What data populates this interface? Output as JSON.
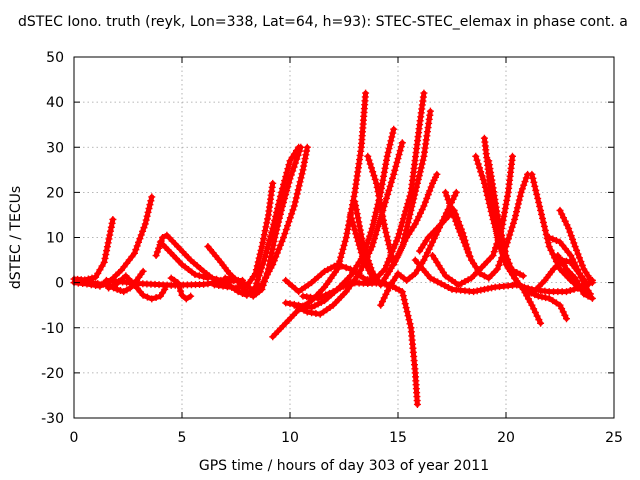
{
  "chart_data": {
    "type": "line",
    "title": "dSTEC Iono. truth (reyk, Lon=338, Lat=64, h=93): STEC-STEC_elemax in phase cont. a",
    "xlabel": "GPS time / hours of day 303 of year 2011",
    "ylabel": "dSTEC  / TECUs",
    "xlim": [
      0,
      25
    ],
    "ylim": [
      -30,
      50
    ],
    "xticks": [
      0,
      5,
      10,
      15,
      20,
      25
    ],
    "yticks": [
      -30,
      -20,
      -10,
      0,
      10,
      20,
      30,
      40,
      50
    ],
    "grid": true,
    "color": "#ff0000",
    "marker": "plus",
    "series": [
      {
        "points": [
          [
            0.0,
            0.8
          ],
          [
            0.5,
            0.6
          ],
          [
            1.0,
            1.2
          ],
          [
            1.4,
            4.5
          ],
          [
            1.8,
            14.0
          ]
        ]
      },
      {
        "points": [
          [
            0.0,
            0.0
          ],
          [
            0.6,
            -0.3
          ],
          [
            1.2,
            -0.8
          ],
          [
            1.7,
            0.5
          ],
          [
            2.2,
            2.8
          ],
          [
            2.8,
            6.5
          ],
          [
            3.3,
            13.0
          ],
          [
            3.6,
            19.0
          ]
        ]
      },
      {
        "points": [
          [
            0.5,
            0.2
          ],
          [
            1.5,
            -0.5
          ],
          [
            2.0,
            -1.5
          ],
          [
            2.3,
            -2.0
          ],
          [
            2.6,
            -1.2
          ],
          [
            2.9,
            0.5
          ],
          [
            3.2,
            2.5
          ]
        ]
      },
      {
        "points": [
          [
            1.6,
            -1.2
          ],
          [
            2.0,
            -0.2
          ],
          [
            2.4,
            1.5
          ],
          [
            2.8,
            -0.5
          ],
          [
            3.2,
            -2.8
          ],
          [
            3.6,
            -3.6
          ],
          [
            4.0,
            -3.0
          ],
          [
            4.2,
            -1.5
          ]
        ]
      },
      {
        "points": [
          [
            3.8,
            6.0
          ],
          [
            4.1,
            10.0
          ],
          [
            4.3,
            10.5
          ],
          [
            4.8,
            8.0
          ],
          [
            5.4,
            5.0
          ],
          [
            6.0,
            2.5
          ],
          [
            6.4,
            1.0
          ],
          [
            6.8,
            0.5
          ]
        ]
      },
      {
        "points": [
          [
            4.0,
            9.0
          ],
          [
            4.6,
            6.0
          ],
          [
            5.0,
            4.0
          ],
          [
            5.6,
            1.8
          ],
          [
            6.2,
            1.0
          ]
        ]
      },
      {
        "points": [
          [
            4.5,
            1.0
          ],
          [
            4.8,
            0.0
          ],
          [
            5.0,
            -2.8
          ],
          [
            5.2,
            -3.6
          ],
          [
            5.4,
            -3.0
          ]
        ]
      },
      {
        "points": [
          [
            1.5,
            0.5
          ],
          [
            3.0,
            -0.2
          ],
          [
            4.5,
            -0.6
          ],
          [
            6.0,
            -0.4
          ],
          [
            7.0,
            0.3
          ],
          [
            7.8,
            0.5
          ]
        ]
      },
      {
        "points": [
          [
            6.2,
            8.0
          ],
          [
            6.8,
            4.5
          ],
          [
            7.2,
            2.0
          ],
          [
            7.6,
            0.2
          ],
          [
            7.9,
            -1.8
          ],
          [
            8.3,
            -3.0
          ],
          [
            8.7,
            -1.5
          ],
          [
            9.0,
            3.0
          ],
          [
            9.3,
            10.0
          ],
          [
            9.6,
            16.0
          ],
          [
            10.0,
            23.0
          ],
          [
            10.5,
            30.0
          ]
        ]
      },
      {
        "points": [
          [
            7.0,
            0.0
          ],
          [
            7.6,
            -2.0
          ],
          [
            8.0,
            -2.8
          ],
          [
            8.4,
            -1.0
          ],
          [
            8.8,
            5.0
          ],
          [
            9.2,
            12.0
          ],
          [
            9.6,
            20.0
          ],
          [
            10.0,
            27.0
          ],
          [
            10.4,
            30.0
          ]
        ]
      },
      {
        "points": [
          [
            6.5,
            -0.5
          ],
          [
            7.5,
            -1.2
          ],
          [
            8.0,
            -0.8
          ],
          [
            8.4,
            2.0
          ],
          [
            8.7,
            8.0
          ],
          [
            9.0,
            15.0
          ],
          [
            9.2,
            22.0
          ]
        ]
      },
      {
        "points": [
          [
            7.0,
            1.0
          ],
          [
            7.6,
            0.5
          ],
          [
            8.0,
            -0.5
          ],
          [
            8.3,
            -2.0
          ],
          [
            8.7,
            -0.5
          ],
          [
            9.2,
            4.0
          ],
          [
            9.7,
            10.0
          ],
          [
            10.2,
            17.0
          ],
          [
            10.6,
            25.0
          ],
          [
            10.8,
            30.0
          ]
        ]
      },
      {
        "points": [
          [
            9.2,
            -12.0
          ],
          [
            9.8,
            -9.0
          ],
          [
            10.4,
            -6.0
          ],
          [
            11.0,
            -4.0
          ],
          [
            11.6,
            -1.0
          ],
          [
            12.2,
            3.0
          ],
          [
            12.6,
            10.0
          ],
          [
            13.0,
            20.0
          ],
          [
            13.3,
            30.0
          ],
          [
            13.5,
            42.0
          ]
        ]
      },
      {
        "points": [
          [
            9.8,
            -4.5
          ],
          [
            10.4,
            -5.0
          ],
          [
            11.0,
            -5.5
          ],
          [
            11.6,
            -4.0
          ],
          [
            12.2,
            -1.5
          ],
          [
            12.8,
            1.5
          ],
          [
            13.4,
            6.0
          ],
          [
            13.8,
            12.0
          ],
          [
            14.2,
            20.0
          ],
          [
            14.5,
            28.0
          ],
          [
            14.8,
            34.0
          ]
        ]
      },
      {
        "points": [
          [
            10.2,
            -5.0
          ],
          [
            10.8,
            -6.5
          ],
          [
            11.4,
            -7.0
          ],
          [
            12.0,
            -5.0
          ],
          [
            12.6,
            -2.0
          ],
          [
            13.2,
            2.0
          ],
          [
            13.8,
            8.0
          ],
          [
            14.3,
            16.0
          ],
          [
            14.8,
            24.0
          ],
          [
            15.2,
            31.0
          ]
        ]
      },
      {
        "points": [
          [
            9.8,
            0.5
          ],
          [
            10.4,
            -2.0
          ],
          [
            11.0,
            0.0
          ],
          [
            11.6,
            2.5
          ],
          [
            12.2,
            4.0
          ],
          [
            12.8,
            3.0
          ],
          [
            13.4,
            1.0
          ],
          [
            14.0,
            0.0
          ],
          [
            14.6,
            -0.5
          ],
          [
            15.2,
            -2.0
          ],
          [
            15.6,
            -10.0
          ],
          [
            15.8,
            -20.0
          ],
          [
            15.9,
            -27.0
          ]
        ]
      },
      {
        "points": [
          [
            10.6,
            -3.0
          ],
          [
            11.3,
            -3.5
          ],
          [
            12.0,
            -2.0
          ],
          [
            12.8,
            0.0
          ],
          [
            13.6,
            -0.2
          ],
          [
            14.4,
            0.0
          ]
        ]
      },
      {
        "points": [
          [
            12.8,
            15.0
          ],
          [
            13.4,
            5.0
          ],
          [
            13.9,
            0.5
          ],
          [
            14.4,
            3.0
          ],
          [
            15.0,
            10.0
          ],
          [
            15.6,
            20.0
          ],
          [
            16.0,
            35.0
          ],
          [
            16.2,
            42.0
          ]
        ]
      },
      {
        "points": [
          [
            13.6,
            28.0
          ],
          [
            14.0,
            22.0
          ],
          [
            14.4,
            12.0
          ],
          [
            14.8,
            4.0
          ],
          [
            15.2,
            8.0
          ],
          [
            15.6,
            16.0
          ],
          [
            16.2,
            28.0
          ],
          [
            16.5,
            38.0
          ]
        ]
      },
      {
        "points": [
          [
            13.0,
            18.0
          ],
          [
            13.4,
            8.0
          ],
          [
            13.8,
            2.5
          ],
          [
            14.2,
            -0.5
          ],
          [
            14.6,
            2.5
          ],
          [
            15.0,
            6.0
          ],
          [
            15.4,
            10.0
          ],
          [
            15.8,
            13.0
          ],
          [
            16.2,
            17.0
          ],
          [
            16.6,
            22.0
          ],
          [
            16.8,
            24.0
          ]
        ]
      },
      {
        "points": [
          [
            14.2,
            -5.0
          ],
          [
            14.6,
            -1.0
          ],
          [
            15.0,
            2.0
          ],
          [
            15.4,
            0.5
          ],
          [
            15.8,
            2.0
          ],
          [
            16.2,
            5.0
          ],
          [
            16.6,
            9.0
          ],
          [
            17.0,
            13.0
          ],
          [
            17.4,
            17.0
          ],
          [
            17.7,
            20.0
          ]
        ]
      },
      {
        "points": [
          [
            16.0,
            7.0
          ],
          [
            16.4,
            10.0
          ],
          [
            16.8,
            12.0
          ],
          [
            17.2,
            14.0
          ],
          [
            17.6,
            16.0
          ],
          [
            18.0,
            11.0
          ],
          [
            18.3,
            6.0
          ]
        ]
      },
      {
        "points": [
          [
            15.8,
            5.0
          ],
          [
            16.5,
            1.0
          ],
          [
            17.5,
            -1.5
          ],
          [
            18.5,
            -2.0
          ],
          [
            19.5,
            -1.0
          ],
          [
            20.5,
            -0.5
          ]
        ]
      },
      {
        "points": [
          [
            16.6,
            6.0
          ],
          [
            17.2,
            1.5
          ],
          [
            17.8,
            -0.5
          ],
          [
            18.4,
            1.0
          ],
          [
            19.0,
            4.0
          ],
          [
            19.4,
            6.0
          ],
          [
            19.8,
            12.0
          ],
          [
            20.1,
            20.0
          ],
          [
            20.3,
            28.0
          ]
        ]
      },
      {
        "points": [
          [
            17.2,
            20.0
          ],
          [
            17.8,
            12.0
          ],
          [
            18.4,
            5.0
          ],
          [
            18.8,
            2.0
          ],
          [
            19.2,
            1.0
          ],
          [
            19.6,
            3.0
          ],
          [
            20.0,
            8.0
          ],
          [
            20.4,
            14.0
          ],
          [
            20.7,
            20.0
          ],
          [
            21.0,
            24.0
          ]
        ]
      },
      {
        "points": [
          [
            19.0,
            32.0
          ],
          [
            19.3,
            20.0
          ],
          [
            19.6,
            10.0
          ],
          [
            20.0,
            4.0
          ],
          [
            20.4,
            1.0
          ],
          [
            20.8,
            -1.5
          ],
          [
            21.2,
            -5.0
          ],
          [
            21.6,
            -9.0
          ]
        ]
      },
      {
        "points": [
          [
            19.2,
            27.0
          ],
          [
            19.6,
            15.0
          ],
          [
            20.0,
            6.0
          ],
          [
            20.5,
            0.0
          ],
          [
            21.0,
            -2.0
          ],
          [
            21.5,
            -3.0
          ],
          [
            22.0,
            -3.5
          ],
          [
            22.5,
            -5.0
          ],
          [
            22.8,
            -8.0
          ]
        ]
      },
      {
        "points": [
          [
            18.6,
            28.0
          ],
          [
            19.0,
            22.0
          ],
          [
            19.4,
            14.0
          ],
          [
            19.8,
            7.0
          ],
          [
            20.2,
            3.0
          ],
          [
            20.8,
            1.5
          ]
        ]
      },
      {
        "points": [
          [
            21.2,
            24.0
          ],
          [
            21.6,
            16.0
          ],
          [
            22.0,
            8.0
          ],
          [
            22.5,
            3.0
          ],
          [
            23.0,
            0.5
          ],
          [
            23.5,
            -1.5
          ],
          [
            23.9,
            -2.5
          ]
        ]
      },
      {
        "points": [
          [
            21.4,
            -1.5
          ],
          [
            21.8,
            0.5
          ],
          [
            22.2,
            3.0
          ],
          [
            22.6,
            5.0
          ],
          [
            23.0,
            4.5
          ],
          [
            23.4,
            2.0
          ],
          [
            23.8,
            -0.5
          ]
        ]
      },
      {
        "points": [
          [
            22.4,
            6.0
          ],
          [
            22.8,
            3.0
          ],
          [
            23.2,
            1.0
          ],
          [
            23.6,
            -2.5
          ],
          [
            24.0,
            -3.5
          ]
        ]
      },
      {
        "points": [
          [
            22.5,
            16.0
          ],
          [
            22.9,
            12.0
          ],
          [
            23.2,
            8.0
          ],
          [
            23.6,
            3.0
          ],
          [
            24.0,
            0.0
          ]
        ]
      },
      {
        "points": [
          [
            20.5,
            -0.5
          ],
          [
            21.2,
            -1.5
          ],
          [
            22.0,
            -2.0
          ],
          [
            22.8,
            -2.0
          ],
          [
            23.5,
            -1.0
          ],
          [
            24.0,
            0.5
          ]
        ]
      },
      {
        "points": [
          [
            22.0,
            10.0
          ],
          [
            22.5,
            9.0
          ],
          [
            23.0,
            6.0
          ],
          [
            23.4,
            2.0
          ],
          [
            23.7,
            -1.0
          ],
          [
            23.9,
            -2.5
          ]
        ]
      }
    ]
  }
}
